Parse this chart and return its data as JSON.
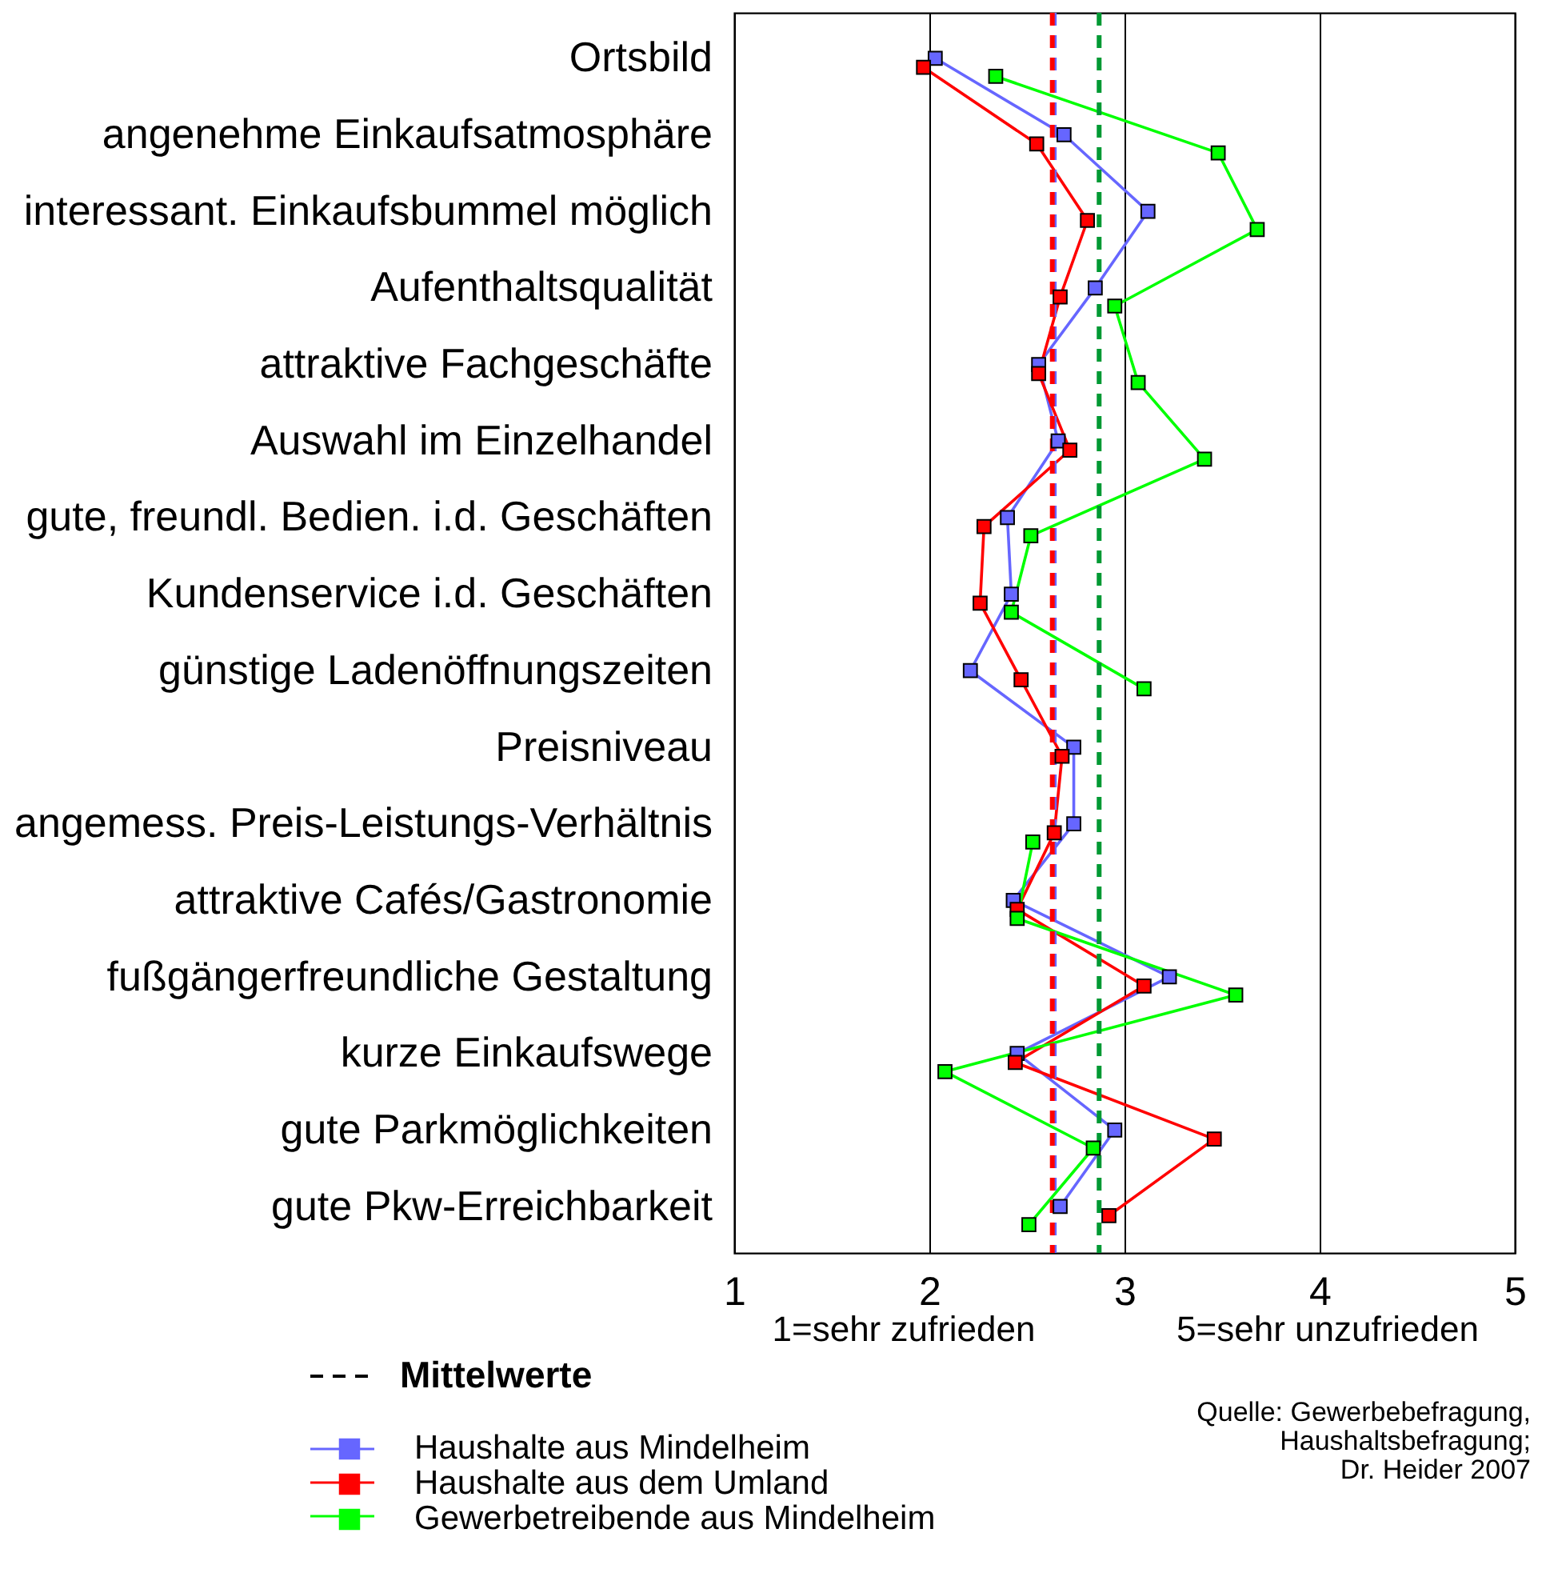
{
  "chart_data": {
    "type": "line",
    "orientation": "horizontal",
    "categories": [
      "Ortsbild",
      "angenehme Einkaufsatmosphäre",
      "interessant. Einkaufsbummel möglich",
      "Aufenthaltsqualität",
      "attraktive Fachgeschäfte",
      "Auswahl im Einzelhandel",
      "gute, freundl. Bedien. i.d. Geschäften",
      "Kundenservice i.d. Geschäften",
      "günstige Ladenöffnungszeiten",
      "Preisniveau",
      "angemess. Preis-Leistungs-Verhältnis",
      "attraktive Cafés/Gastronomie",
      "fußgängerfreundliche Gestaltung",
      "kurze Einkaufswege",
      "gute Parkmöglichkeiten",
      "gute Pkw-Erreichbarkeit"
    ],
    "series": [
      {
        "name": "Haushalte aus Mindelheim",
        "color": "#6666ff",
        "values": [
          2.03,
          2.69,
          3.12,
          2.85,
          2.56,
          2.66,
          2.4,
          2.42,
          2.21,
          2.74,
          2.74,
          2.43,
          3.23,
          2.45,
          2.95,
          2.67
        ]
      },
      {
        "name": "Haushalte aus dem Umland",
        "color": "#ff0000",
        "values": [
          1.97,
          2.55,
          2.81,
          2.67,
          2.56,
          2.72,
          2.28,
          2.26,
          2.47,
          2.68,
          2.64,
          2.45,
          3.1,
          2.44,
          3.46,
          2.92
        ]
      },
      {
        "name": "Gewerbetreibende aus Mindelheim",
        "color": "#00ff00",
        "values": [
          2.34,
          3.48,
          3.68,
          2.95,
          3.07,
          3.41,
          2.52,
          2.42,
          3.1,
          null,
          2.53,
          2.45,
          3.57,
          2.08,
          2.84,
          2.51
        ]
      }
    ],
    "xlim": [
      1,
      5
    ],
    "xticks": [
      1,
      2,
      3,
      4,
      5
    ],
    "grid": "x",
    "marker": "square",
    "legend": "bottom left",
    "ref_lines": [
      {
        "axis": "x",
        "value": 2.64,
        "color": "#6666ff",
        "line_style": "dashed"
      },
      {
        "axis": "x",
        "value": 2.63,
        "color": "#ff0000",
        "line_style": "dashed"
      },
      {
        "axis": "x",
        "value": 2.87,
        "color": "#009933",
        "line_style": "dashed"
      }
    ],
    "annotations": [
      "1=sehr zufrieden",
      "5=sehr unzufrieden",
      "Mittelwerte",
      "Quelle: Gewerbebefragung,\nHaushaltsbefragung;\nDr. Heider 2007"
    ]
  }
}
